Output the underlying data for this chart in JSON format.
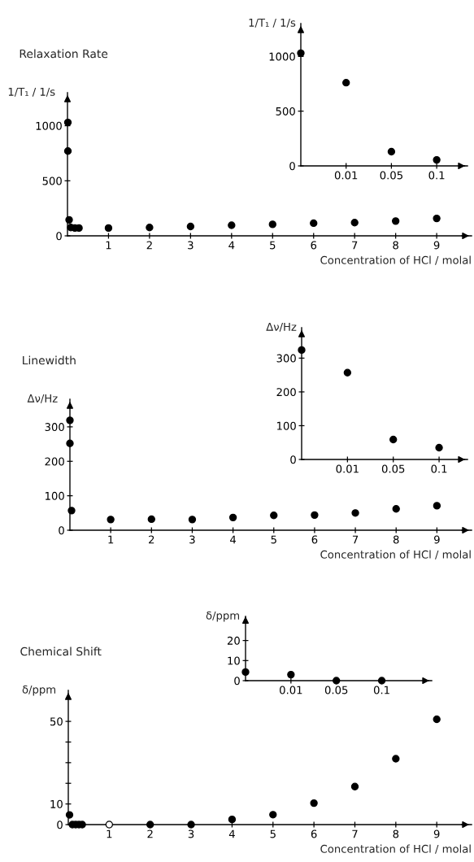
{
  "chart_data": [
    {
      "type": "scatter",
      "title": "Relaxation Rate",
      "ylabel": "1/T₁ / 1/s",
      "xlabel": "Concentration of HCl / molal",
      "x": [
        0.01,
        0.01,
        0.04,
        0.08,
        0.18,
        0.28,
        1,
        2,
        3,
        4,
        5,
        6,
        7,
        8,
        9
      ],
      "xlim": [
        0,
        9.85
      ],
      "xticks": [
        1,
        2,
        3,
        4,
        5,
        6,
        7,
        8,
        9
      ],
      "ylim": [
        0,
        1300
      ],
      "yticks": [
        0,
        500,
        1000
      ],
      "marker": "circle",
      "grid": false,
      "legend": false,
      "series": [
        {
          "color": "#000000",
          "values": [
            1030,
            770,
            145,
            76,
            71,
            71,
            71,
            76,
            85,
            96,
            104,
            115,
            120,
            134,
            158
          ]
        }
      ]
    },
    {
      "type": "scatter",
      "ylabel": "1/T₁ / 1/s",
      "categories": [
        null,
        "0.01",
        "0.05",
        "0.1"
      ],
      "ylim": [
        0,
        1300
      ],
      "yticks": [
        0,
        500,
        1000
      ],
      "marker": "circle",
      "grid": false,
      "legend": false,
      "series": [
        {
          "color": "#000000",
          "values": [
            1030,
            760,
            130,
            55
          ]
        }
      ]
    },
    {
      "type": "scatter",
      "title": "Linewidth",
      "ylabel": "Δν/Hz",
      "xlabel": "Concentration of HCl / molal",
      "x": [
        0,
        0,
        0.04,
        1,
        2,
        3,
        4,
        5,
        6,
        7,
        8,
        9
      ],
      "xlim": [
        0,
        9.85
      ],
      "xticks": [
        1,
        2,
        3,
        4,
        5,
        6,
        7,
        8,
        9
      ],
      "ylim": [
        0,
        380
      ],
      "yticks": [
        0,
        100,
        200,
        300
      ],
      "marker": "circle",
      "grid": false,
      "legend": false,
      "series": [
        {
          "color": "#000000",
          "values": [
            319,
            252,
            57,
            31,
            32,
            31,
            37,
            43,
            44,
            50,
            62,
            71
          ]
        }
      ]
    },
    {
      "type": "scatter",
      "ylabel": "Δν/Hz",
      "categories": [
        null,
        "0.01",
        "0.05",
        "0.1"
      ],
      "ylim": [
        0,
        390
      ],
      "yticks": [
        0,
        100,
        200,
        300
      ],
      "marker": "circle",
      "grid": false,
      "legend": false,
      "series": [
        {
          "color": "#000000",
          "values": [
            324,
            257,
            59,
            35
          ]
        }
      ]
    },
    {
      "type": "scatter",
      "title": "Chemical Shift",
      "ylabel": "δ/ppm",
      "xlabel": "Concentration of HCl / molal",
      "xlim": [
        0,
        9.85
      ],
      "xticks": [
        1,
        2,
        3,
        4,
        5,
        6,
        7,
        8,
        9
      ],
      "ylim": [
        0,
        65
      ],
      "yticks": [
        0,
        10,
        {
          "value": 20,
          "label": null
        },
        {
          "value": 30,
          "label": null
        },
        {
          "value": 40,
          "label": null
        },
        50
      ],
      "grid": false,
      "legend": false,
      "series": [
        {
          "color": "#000000",
          "marker": "circle",
          "x": [
            0.03,
            0.1,
            0.18,
            0.26,
            0.34,
            2,
            3,
            4,
            5,
            6,
            7,
            8,
            9
          ],
          "values": [
            4.7,
            0,
            0,
            0,
            0,
            0,
            0,
            2.5,
            4.8,
            10.4,
            18.4,
            31.9,
            51
          ]
        },
        {
          "color": "#ffffff",
          "marker": "circle",
          "x": [
            1
          ],
          "values": [
            0
          ]
        }
      ]
    },
    {
      "type": "scatter",
      "ylabel": "δ/ppm",
      "categories": [
        null,
        "0.01",
        "0.05",
        "0.1"
      ],
      "ylim": [
        0,
        32
      ],
      "yticks": [
        0,
        10,
        20
      ],
      "marker": "circle",
      "grid": false,
      "legend": false,
      "series": [
        {
          "color": "#000000",
          "values": [
            4.3,
            3.0,
            0,
            0
          ]
        }
      ]
    }
  ]
}
